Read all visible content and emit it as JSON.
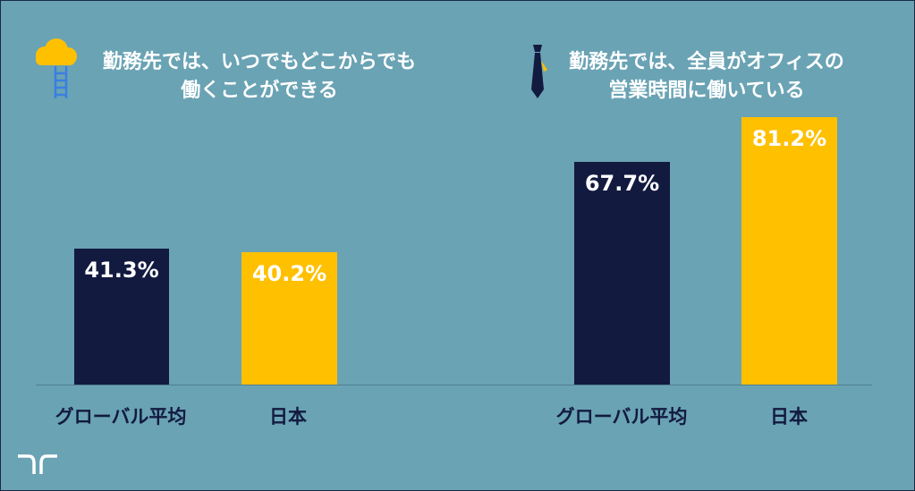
{
  "colors": {
    "background": "#6aa3b4",
    "dark": "#121a40",
    "gold": "#ffc000"
  },
  "icons": {
    "left": "cloud-ladder-icon",
    "right": "necktie-icon",
    "logo": "brand-logo"
  },
  "chart_data": [
    {
      "type": "bar",
      "title": "勤務先では、いつでもどこからでも 働くことができる",
      "title_lines": [
        "勤務先では、いつでもどこからでも",
        "働くことができる"
      ],
      "categories": [
        "グローバル平均",
        "日本"
      ],
      "values": [
        41.3,
        40.2
      ],
      "value_labels": [
        "41.3%",
        "40.2%"
      ],
      "ylim": [
        0,
        100
      ],
      "grid": false
    },
    {
      "type": "bar",
      "title": "勤務先では、全員がオフィスの 営業時間に働いている",
      "title_lines": [
        "勤務先では、全員がオフィスの",
        "営業時間に働いている"
      ],
      "categories": [
        "グローバル平均",
        "日本"
      ],
      "values": [
        67.7,
        81.2
      ],
      "value_labels": [
        "67.7%",
        "81.2%"
      ],
      "ylim": [
        0,
        100
      ],
      "grid": false
    }
  ]
}
